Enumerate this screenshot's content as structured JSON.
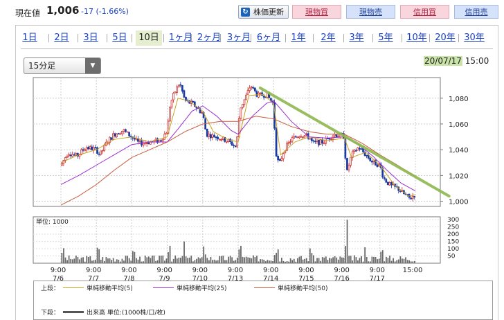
{
  "header": {
    "price_label": "現在値",
    "price_value": "1,006",
    "price_change": "-17 (-1.66%)",
    "refresh_label": "株価更新",
    "buttons": [
      "現物買",
      "現物売",
      "信用買",
      "信用売"
    ]
  },
  "periods": [
    "1日",
    "2日",
    "3日",
    "5日",
    "10日",
    "1ヶ月",
    "2ヶ月",
    "3ヶ月",
    "6ヶ月",
    "1年",
    "2年",
    "3年",
    "5年",
    "10年",
    "20年",
    "30年"
  ],
  "active_period": "10日",
  "interval_select": "15分足",
  "datetime": {
    "date": "20/07/17",
    "time": "15:00"
  },
  "colors": {
    "ma5": "#c8a020",
    "ma25": "#9b30d0",
    "ma50": "#c85a3a",
    "candle_up": "#d02020",
    "candle_down": "#1a3a9f",
    "trend": "#8fb84f",
    "volume": "#6a6a6a"
  },
  "chart_data": {
    "type": "candlestick",
    "price_axis": {
      "ylim": [
        996,
        1096
      ],
      "ticks": [
        1000,
        1020,
        1040,
        1060,
        1080
      ],
      "tick_labels": [
        "1,000",
        "1,020",
        "1,040",
        "1,060",
        "1,080"
      ]
    },
    "volume_axis": {
      "label": "単位: 1000",
      "ylim": [
        0,
        320
      ],
      "ticks": [
        50,
        100,
        150,
        200,
        250,
        300
      ]
    },
    "x_tick_labels": [
      [
        "9:00",
        "7/6"
      ],
      [
        "9:00",
        "7/7"
      ],
      [
        "9:00",
        "7/8"
      ],
      [
        "9:00",
        "7/9"
      ],
      [
        "9:00",
        "7/10"
      ],
      [
        "9:00",
        "7/13"
      ],
      [
        "9:00",
        "7/14"
      ],
      [
        "9:00",
        "7/15"
      ],
      [
        "9:00",
        "7/16"
      ],
      [
        "9:00",
        "7/17"
      ],
      [
        "15:00",
        ""
      ]
    ],
    "price_path": [
      [
        0.0,
        1028
      ],
      [
        0.2,
        1038
      ],
      [
        0.45,
        1035
      ],
      [
        0.7,
        1042
      ],
      [
        1.0,
        1040
      ],
      [
        1.1,
        1036
      ],
      [
        1.3,
        1046
      ],
      [
        1.5,
        1052
      ],
      [
        1.75,
        1055
      ],
      [
        2.0,
        1050
      ],
      [
        2.2,
        1045
      ],
      [
        2.5,
        1046
      ],
      [
        2.8,
        1047
      ],
      [
        3.0,
        1055
      ],
      [
        3.08,
        1075
      ],
      [
        3.2,
        1084
      ],
      [
        3.35,
        1092
      ],
      [
        3.5,
        1078
      ],
      [
        3.75,
        1075
      ],
      [
        4.0,
        1068
      ],
      [
        4.1,
        1052
      ],
      [
        4.4,
        1050
      ],
      [
        4.7,
        1047
      ],
      [
        4.95,
        1042
      ],
      [
        5.05,
        1072
      ],
      [
        5.2,
        1080
      ],
      [
        5.35,
        1090
      ],
      [
        5.55,
        1082
      ],
      [
        5.8,
        1083
      ],
      [
        6.0,
        1075
      ],
      [
        6.05,
        1040
      ],
      [
        6.15,
        1028
      ],
      [
        6.3,
        1040
      ],
      [
        6.5,
        1048
      ],
      [
        6.75,
        1052
      ],
      [
        7.0,
        1050
      ],
      [
        7.1,
        1045
      ],
      [
        7.4,
        1046
      ],
      [
        7.7,
        1052
      ],
      [
        8.0,
        1050
      ],
      [
        8.05,
        1020
      ],
      [
        8.2,
        1036
      ],
      [
        8.4,
        1042
      ],
      [
        8.6,
        1036
      ],
      [
        8.8,
        1030
      ],
      [
        9.0,
        1028
      ],
      [
        9.1,
        1018
      ],
      [
        9.3,
        1012
      ],
      [
        9.5,
        1010
      ],
      [
        9.7,
        1005
      ],
      [
        9.85,
        1002
      ],
      [
        10.0,
        1006
      ]
    ],
    "ma_series": [
      {
        "name": "単純移動平均(5)",
        "values": [
          [
            0.0,
            1030
          ],
          [
            0.5,
            1036
          ],
          [
            1.0,
            1040
          ],
          [
            1.5,
            1048
          ],
          [
            2.0,
            1050
          ],
          [
            2.5,
            1046
          ],
          [
            3.0,
            1050
          ],
          [
            3.3,
            1080
          ],
          [
            3.6,
            1078
          ],
          [
            4.0,
            1070
          ],
          [
            4.3,
            1054
          ],
          [
            4.7,
            1048
          ],
          [
            5.0,
            1046
          ],
          [
            5.3,
            1082
          ],
          [
            5.7,
            1083
          ],
          [
            6.0,
            1076
          ],
          [
            6.2,
            1036
          ],
          [
            6.6,
            1046
          ],
          [
            7.0,
            1050
          ],
          [
            7.5,
            1047
          ],
          [
            8.0,
            1049
          ],
          [
            8.2,
            1034
          ],
          [
            8.6,
            1038
          ],
          [
            9.0,
            1028
          ],
          [
            9.4,
            1013
          ],
          [
            9.8,
            1004
          ],
          [
            10.0,
            1005
          ]
        ]
      },
      {
        "name": "単純移動平均(25)",
        "values": [
          [
            0.0,
            1013
          ],
          [
            0.5,
            1020
          ],
          [
            1.0,
            1028
          ],
          [
            1.5,
            1036
          ],
          [
            2.0,
            1044
          ],
          [
            2.5,
            1046
          ],
          [
            3.0,
            1046
          ],
          [
            3.3,
            1056
          ],
          [
            3.7,
            1070
          ],
          [
            4.0,
            1074
          ],
          [
            4.4,
            1066
          ],
          [
            4.8,
            1055
          ],
          [
            5.0,
            1052
          ],
          [
            5.4,
            1066
          ],
          [
            5.8,
            1076
          ],
          [
            6.0,
            1078
          ],
          [
            6.5,
            1062
          ],
          [
            7.0,
            1050
          ],
          [
            7.5,
            1049
          ],
          [
            8.0,
            1050
          ],
          [
            8.4,
            1044
          ],
          [
            8.8,
            1035
          ],
          [
            9.2,
            1024
          ],
          [
            9.6,
            1014
          ],
          [
            10.0,
            1008
          ]
        ]
      },
      {
        "name": "単純移動平均(50)",
        "values": [
          [
            0.0,
            997
          ],
          [
            0.5,
            1004
          ],
          [
            1.0,
            1013
          ],
          [
            1.5,
            1024
          ],
          [
            2.0,
            1034
          ],
          [
            2.5,
            1040
          ],
          [
            3.0,
            1046
          ],
          [
            3.5,
            1054
          ],
          [
            4.0,
            1060
          ],
          [
            4.5,
            1062
          ],
          [
            5.0,
            1062
          ],
          [
            5.5,
            1066
          ],
          [
            6.0,
            1064
          ],
          [
            6.5,
            1058
          ],
          [
            7.0,
            1054
          ],
          [
            7.5,
            1052
          ],
          [
            8.0,
            1052
          ],
          [
            8.5,
            1045
          ],
          [
            9.0,
            1036
          ],
          [
            9.5,
            1028
          ],
          [
            10.0,
            1019
          ]
        ]
      }
    ],
    "trendline": [
      [
        5.62,
        1088
      ],
      [
        10.95,
        1004
      ]
    ],
    "volume_spikes": [
      [
        3.05,
        120
      ],
      [
        3.45,
        150
      ],
      [
        5.05,
        120
      ],
      [
        6.1,
        95
      ],
      [
        8.05,
        300
      ],
      [
        8.55,
        110
      ],
      [
        9.05,
        90
      ]
    ]
  },
  "legend": {
    "upper_label": "上段：",
    "lower_label": "下段：",
    "ma5": "単純移動平均(5)",
    "ma25": "単純移動平均(25)",
    "ma50": "単純移動平均(50)",
    "volume": "出来高 単位:(1000株/口/枚)"
  }
}
